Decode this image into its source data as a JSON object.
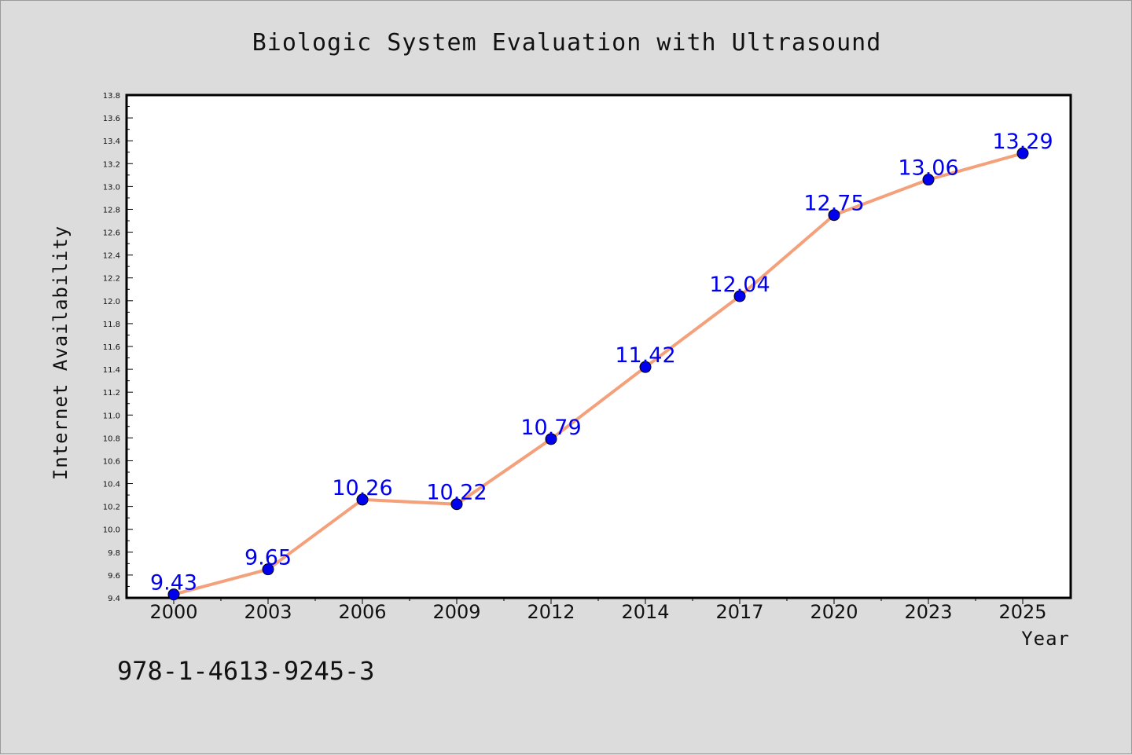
{
  "chart_data": {
    "type": "line",
    "title": "Biologic System Evaluation with Ultrasound",
    "xlabel": "Year",
    "ylabel": "Internet Availability",
    "categories": [
      "2000",
      "2003",
      "2006",
      "2009",
      "2012",
      "2014",
      "2017",
      "2020",
      "2023",
      "2025"
    ],
    "series": [
      {
        "values": [
          9.43,
          9.65,
          10.26,
          10.22,
          10.79,
          11.42,
          12.04,
          12.75,
          13.06,
          13.29
        ]
      }
    ],
    "data_labels": [
      "9.43",
      "9.65",
      "10.26",
      "10.22",
      "10.79",
      "11.42",
      "12.04",
      "12.75",
      "13.06",
      "13.29"
    ],
    "ylim": [
      9.4,
      13.8
    ],
    "yticks": [
      "9.4",
      "9.6",
      "9.8",
      "10.0",
      "10.2",
      "10.4",
      "10.6",
      "10.8",
      "11.0",
      "11.2",
      "11.4",
      "11.6",
      "11.8",
      "12.0",
      "12.2",
      "12.4",
      "12.6",
      "12.8",
      "13.0",
      "13.2",
      "13.4",
      "13.6",
      "13.8"
    ],
    "grid": false,
    "line_color": "#f4a07a",
    "marker_color": "#0000ee",
    "label_color": "#0000ee"
  },
  "footer_text": "978-1-4613-9245-3",
  "colors": {
    "background": "#dcdcdc",
    "plot_background": "#ffffff"
  }
}
